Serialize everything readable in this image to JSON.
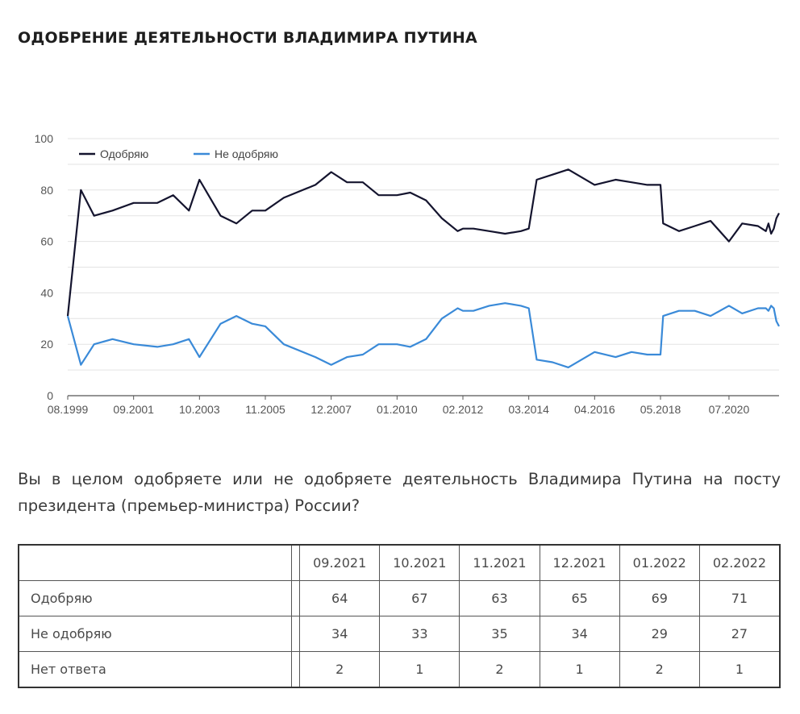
{
  "page": {
    "title": "ОДОБРЕНИЕ ДЕЯТЕЛЬНОСТИ ВЛАДИМИРА ПУТИНА",
    "question": "Вы в целом одобряете или не одобряете деятельность Владимира Путина на посту президента (премьер-министра) России?"
  },
  "table": {
    "columns": [
      "09.2021",
      "10.2021",
      "11.2021",
      "12.2021",
      "01.2022",
      "02.2022"
    ],
    "rows": [
      {
        "label": "Одобряю",
        "values": [
          "64",
          "67",
          "63",
          "65",
          "69",
          "71"
        ]
      },
      {
        "label": "Не одобряю",
        "values": [
          "34",
          "33",
          "35",
          "34",
          "29",
          "27"
        ]
      },
      {
        "label": "Нет ответа",
        "values": [
          "2",
          "1",
          "2",
          "1",
          "2",
          "1"
        ]
      }
    ]
  },
  "chart_data": {
    "type": "line",
    "title": "",
    "xlabel": "",
    "ylabel": "",
    "ylim": [
      0,
      100
    ],
    "yticks": [
      0,
      20,
      40,
      60,
      80,
      100
    ],
    "xtick_labels": [
      "08.1999",
      "09.2001",
      "10.2003",
      "11.2005",
      "12.2007",
      "01.2010",
      "02.2012",
      "03.2014",
      "04.2016",
      "05.2018",
      "07.2020"
    ],
    "grid": true,
    "legend_position": "top-left",
    "x": [
      "08.1999",
      "01.2000",
      "06.2000",
      "01.2001",
      "09.2001",
      "06.2002",
      "12.2002",
      "06.2003",
      "10.2003",
      "06.2004",
      "12.2004",
      "06.2005",
      "11.2005",
      "06.2006",
      "06.2007",
      "12.2007",
      "06.2008",
      "12.2008",
      "06.2009",
      "01.2010",
      "06.2010",
      "12.2010",
      "06.2011",
      "12.2011",
      "02.2012",
      "06.2012",
      "12.2012",
      "06.2013",
      "12.2013",
      "03.2014",
      "06.2014",
      "12.2014",
      "06.2015",
      "04.2016",
      "12.2016",
      "06.2017",
      "12.2017",
      "05.2018",
      "06.2018",
      "12.2018",
      "06.2019",
      "12.2019",
      "07.2020",
      "12.2020",
      "06.2021",
      "09.2021",
      "10.2021",
      "11.2021",
      "12.2021",
      "01.2022",
      "02.2022"
    ],
    "series": [
      {
        "name": "Одобряю",
        "color": "#14142e",
        "values": [
          31,
          80,
          70,
          72,
          75,
          75,
          78,
          72,
          84,
          70,
          67,
          72,
          72,
          77,
          82,
          87,
          83,
          83,
          78,
          78,
          79,
          76,
          69,
          64,
          65,
          65,
          64,
          63,
          64,
          65,
          84,
          86,
          88,
          82,
          84,
          83,
          82,
          82,
          67,
          64,
          66,
          68,
          60,
          67,
          66,
          64,
          67,
          63,
          65,
          69,
          71
        ]
      },
      {
        "name": "Не одобряю",
        "color": "#3a8ad8",
        "values": [
          31,
          12,
          20,
          22,
          20,
          19,
          20,
          22,
          15,
          28,
          31,
          28,
          27,
          20,
          15,
          12,
          15,
          16,
          20,
          20,
          19,
          22,
          30,
          34,
          33,
          33,
          35,
          36,
          35,
          34,
          14,
          13,
          11,
          17,
          15,
          17,
          16,
          16,
          31,
          33,
          33,
          31,
          35,
          32,
          34,
          34,
          33,
          35,
          34,
          29,
          27
        ]
      }
    ]
  }
}
